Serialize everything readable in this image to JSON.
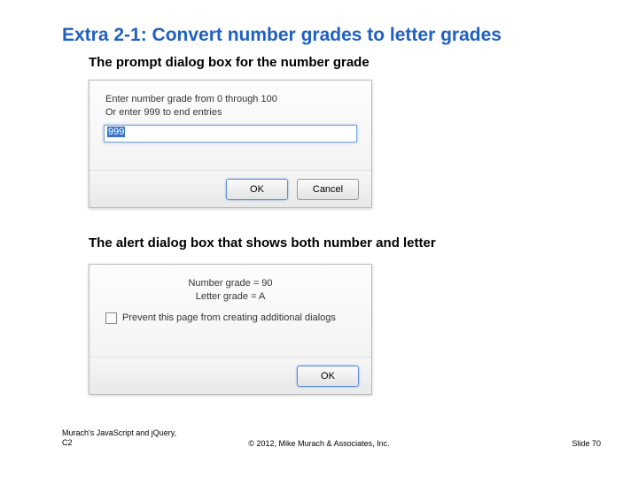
{
  "title": "Extra 2-1: Convert number grades to letter grades",
  "section1_heading": "The prompt dialog box for the number grade",
  "section2_heading": "The alert dialog box that shows both number and letter",
  "prompt_dialog": {
    "line1": "Enter number grade from 0 through 100",
    "line2": "Or enter 999 to end entries",
    "input_value": "999",
    "ok_label": "OK",
    "cancel_label": "Cancel"
  },
  "alert_dialog": {
    "line1": "Number grade = 90",
    "line2": "Letter grade = A",
    "checkbox_label": "Prevent this page from creating additional dialogs",
    "ok_label": "OK"
  },
  "footer": {
    "left_line1": "Murach's JavaScript and jQuery,",
    "left_line2": "C2",
    "center": "© 2012, Mike Murach & Associates, Inc.",
    "right": "Slide 70"
  },
  "colors": {
    "title_color": "#1f60c4",
    "input_border": "#7aa7d6",
    "selection_bg": "#3b74c6"
  }
}
